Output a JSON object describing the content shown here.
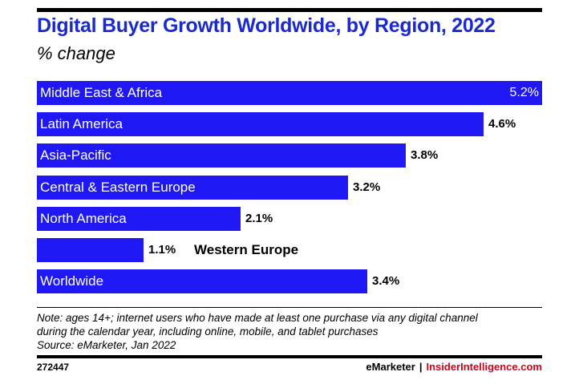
{
  "chart_data": {
    "type": "bar",
    "orientation": "horizontal",
    "title": "Digital Buyer Growth Worldwide, by Region, 2022",
    "subtitle": "% change",
    "categories": [
      "Middle East & Africa",
      "Latin America",
      "Asia-Pacific",
      "Central & Eastern Europe",
      "North America",
      "Western Europe",
      "Worldwide"
    ],
    "values": [
      5.2,
      4.6,
      3.8,
      3.2,
      2.1,
      1.1,
      3.4
    ],
    "value_labels": [
      "5.2%",
      "4.6%",
      "3.8%",
      "3.2%",
      "2.1%",
      "1.1%",
      "3.4%"
    ],
    "xlim": [
      0,
      5.2
    ],
    "bar_color": "#1f18f5",
    "title_color": "#1a2acc"
  },
  "note": {
    "line1": "Note: ages 14+; internet users who have made at least one purchase via any digital channel",
    "line2": "during the calendar year, including online, mobile, and tablet purchases",
    "source": "Source: eMarketer, Jan 2022"
  },
  "footer": {
    "chart_id": "272447",
    "brand1": "eMarketer",
    "separator": "|",
    "brand2": "InsiderIntelligence.com",
    "brand2_color": "#d0021b"
  }
}
